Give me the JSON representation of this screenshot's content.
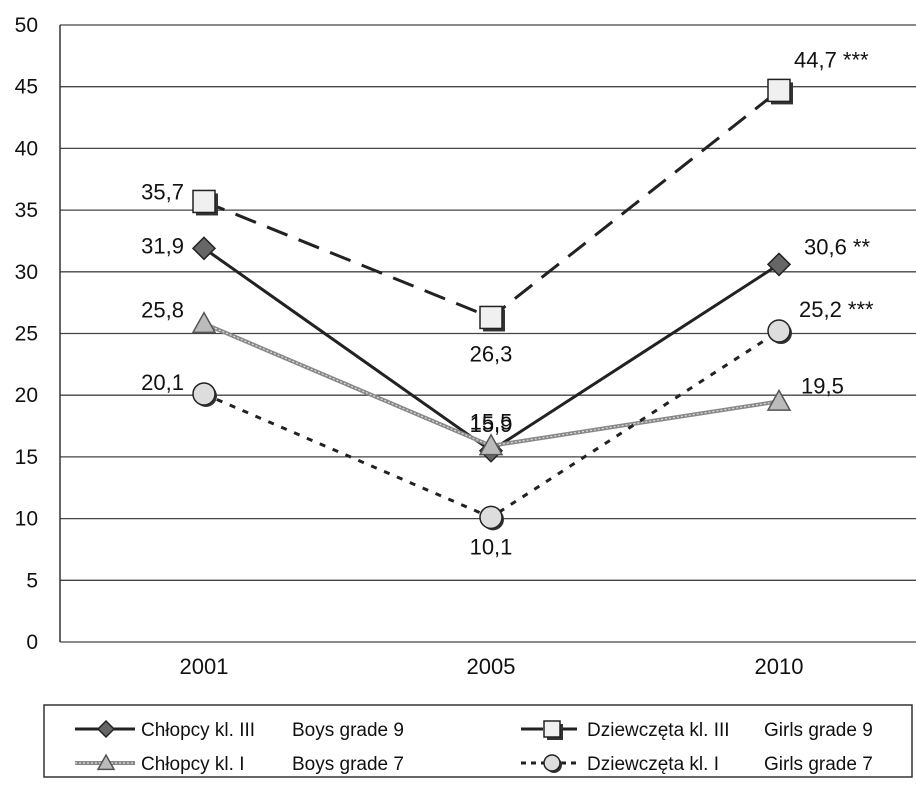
{
  "chart_data": {
    "type": "line",
    "title": "",
    "xlabel": "",
    "ylabel": "",
    "categories": [
      "2001",
      "2005",
      "2010"
    ],
    "ylim": [
      0,
      50
    ],
    "yticks": [
      0,
      5,
      10,
      15,
      20,
      25,
      30,
      35,
      40,
      45,
      50
    ],
    "grid": "horizontal",
    "legend_placement": "bottom",
    "series": [
      {
        "name": "Chłopcy kl. III",
        "name_en": "Boys grade 9",
        "values": [
          31.9,
          15.5,
          30.6
        ],
        "labels": [
          "31,9",
          "15,5",
          "30,6 **"
        ],
        "line_style": "solid",
        "marker": "diamond",
        "color": "#222222",
        "marker_fill": "#666666"
      },
      {
        "name": "Dziewczęta kl. III",
        "name_en": "Girls grade 9",
        "values": [
          35.7,
          26.3,
          44.7
        ],
        "labels": [
          "35,7",
          "26,3",
          "44,7 ***"
        ],
        "line_style": "long-dash",
        "marker": "square",
        "color": "#222222",
        "marker_fill": "#f0f0f0"
      },
      {
        "name": "Chłopcy kl. I",
        "name_en": "Boys grade 7",
        "values": [
          25.8,
          15.9,
          19.5
        ],
        "labels": [
          "25,8",
          "15,9",
          "19,5"
        ],
        "line_style": "grey-double",
        "marker": "triangle",
        "color": "#888888",
        "marker_fill": "#bbbbbb"
      },
      {
        "name": "Dziewczęta kl. I",
        "name_en": "Girls grade 7",
        "values": [
          20.1,
          10.1,
          25.2
        ],
        "labels": [
          "20,1",
          "10,1",
          "25,2 ***"
        ],
        "line_style": "short-dash",
        "marker": "circle",
        "color": "#222222",
        "marker_fill": "#dddddd"
      }
    ]
  }
}
